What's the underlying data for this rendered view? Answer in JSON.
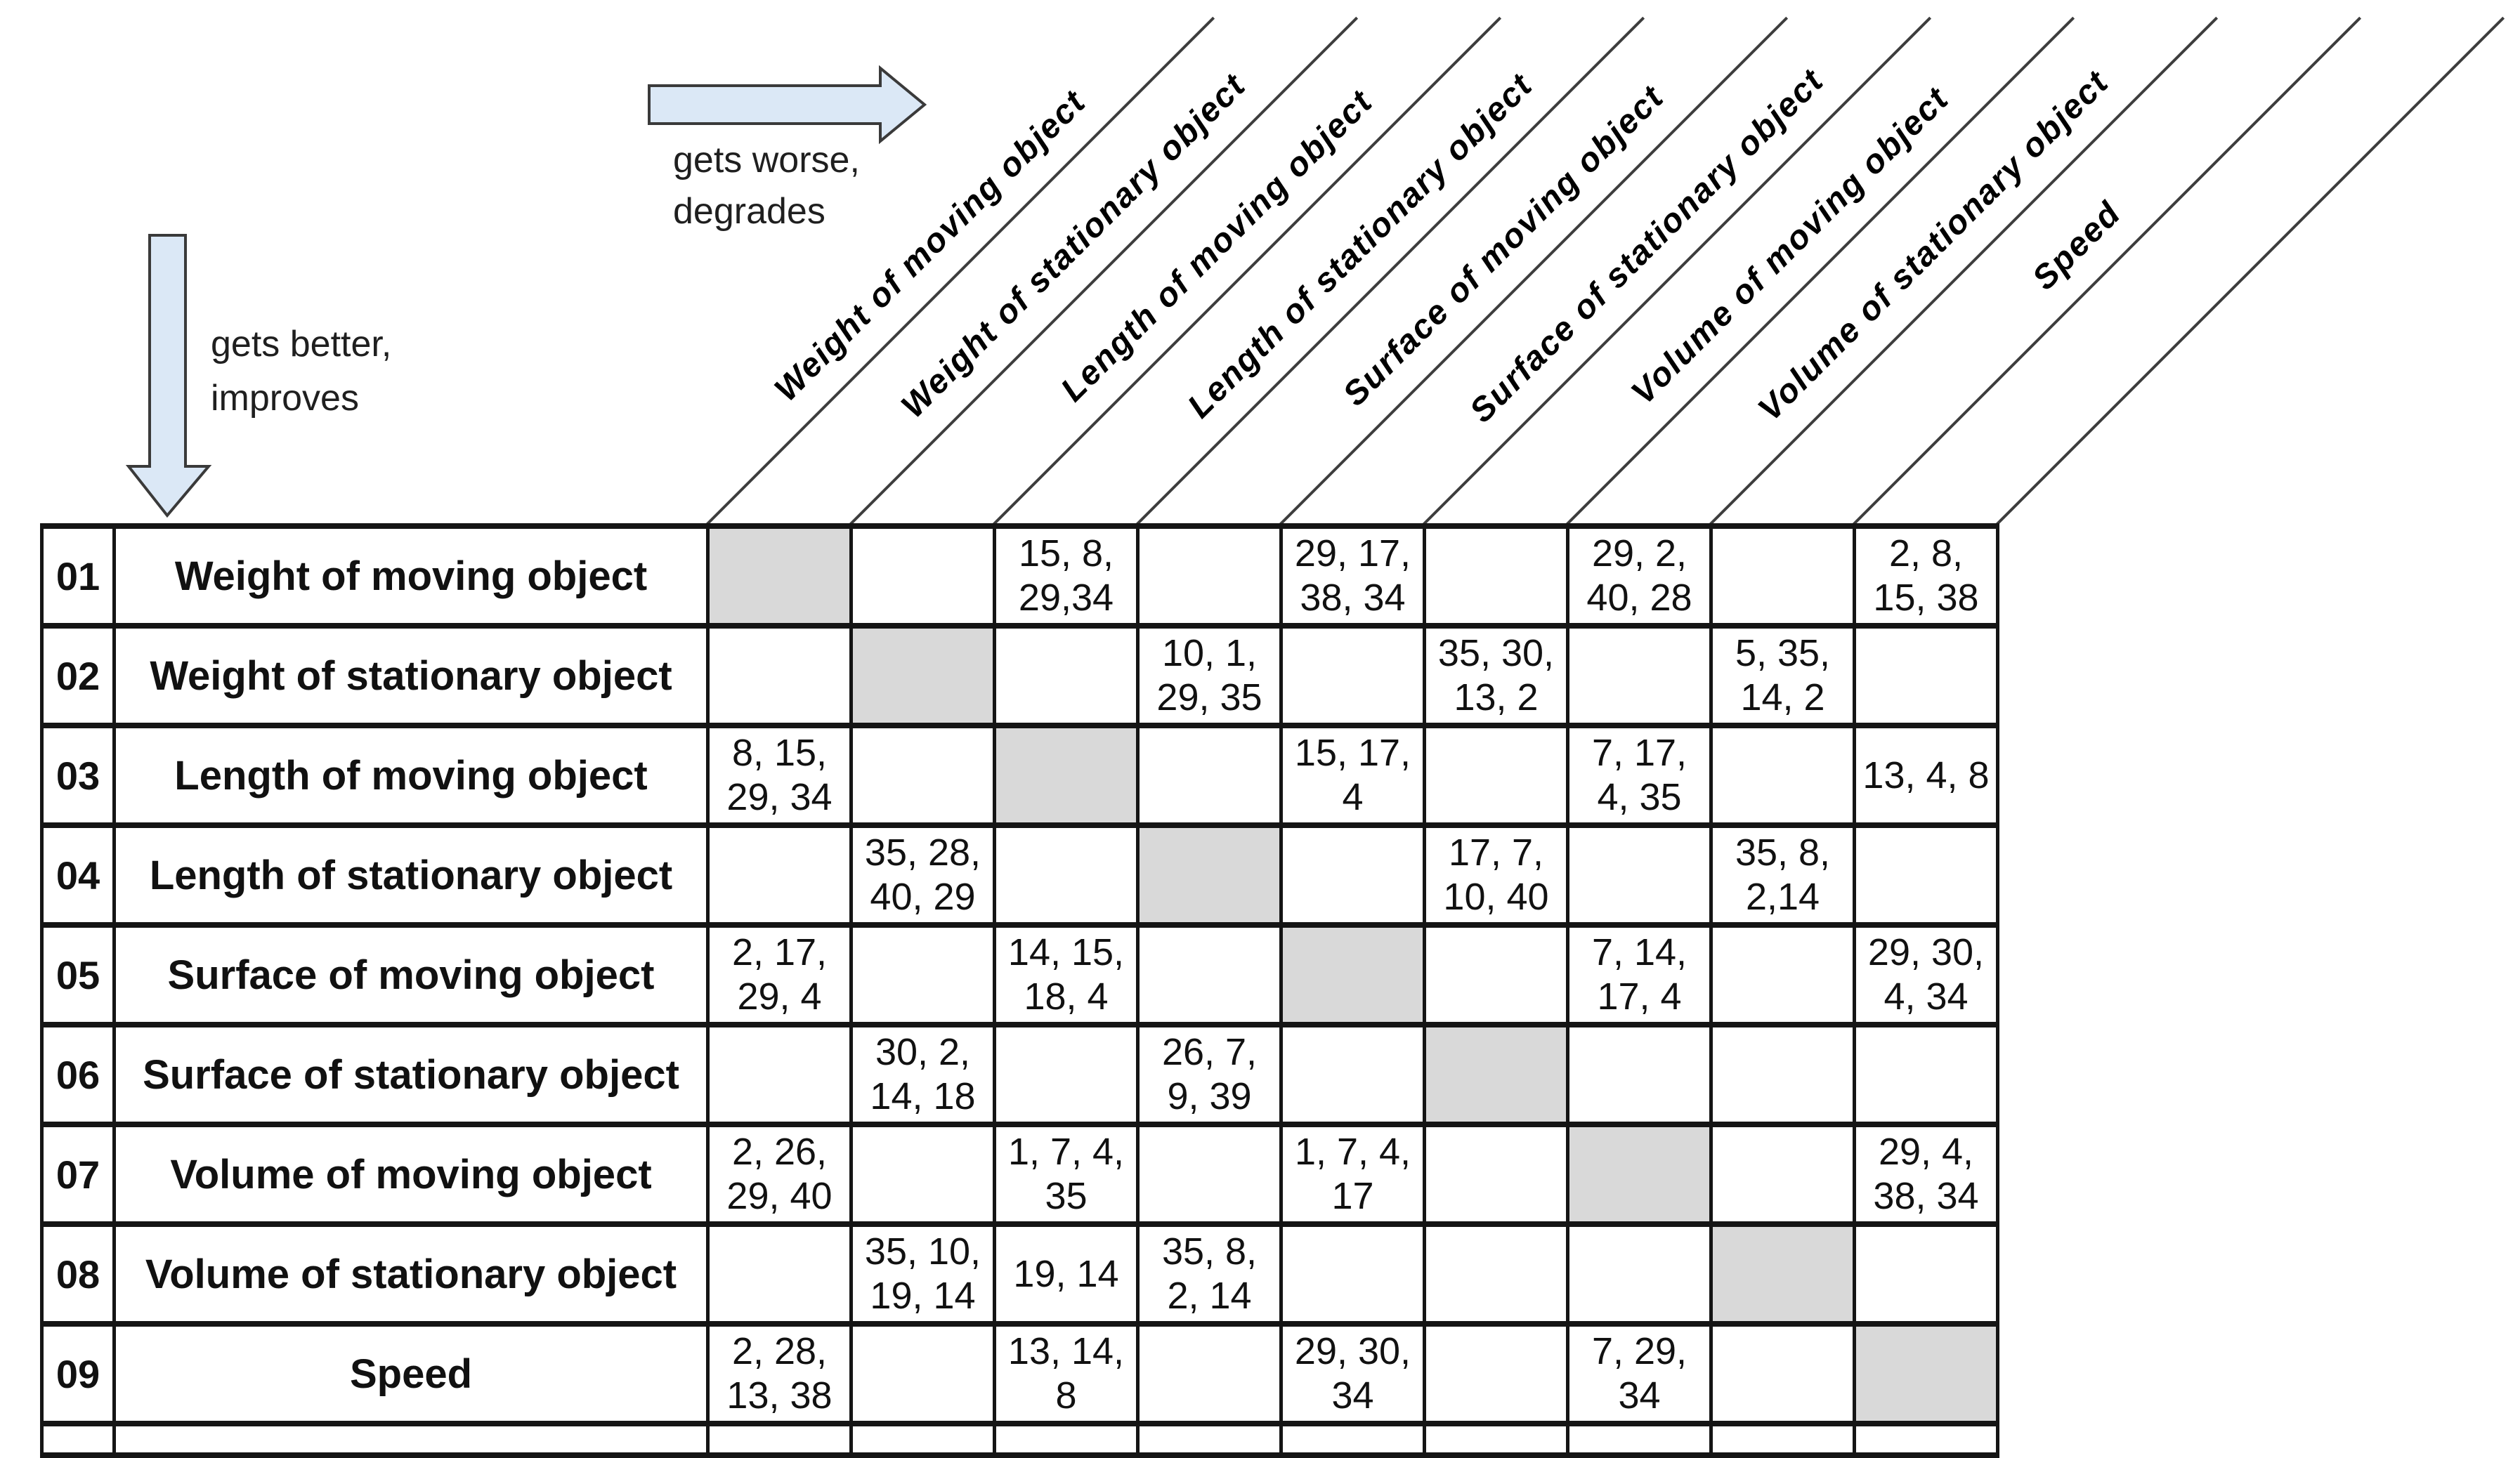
{
  "theme": {
    "arrow_fill": "#dbe8f6",
    "arrow_stroke": "#3a3a3a",
    "diagonal_fill": "#d9d9d9",
    "border_color": "#151515",
    "line_color": "#3d3d3d"
  },
  "annotations": {
    "horizontal_arrow_label": "gets worse,\ndegrades",
    "vertical_arrow_label": "gets better,\nimproves"
  },
  "matrix": {
    "columns": [
      "Weight of moving object",
      "Weight of stationary object",
      "Length of moving object",
      "Length of stationary object",
      "Surface of moving object",
      "Surface of stationary object",
      "Volume of moving object",
      "Volume of stationary object",
      "Speed"
    ],
    "rows": [
      {
        "num": "01",
        "label": "Weight of moving object",
        "diag": 1,
        "cells": [
          "",
          "",
          "15, 8,\n29,34",
          "",
          "29, 17,\n38, 34",
          "",
          "29, 2,\n40, 28",
          "",
          "2, 8,\n15, 38"
        ]
      },
      {
        "num": "02",
        "label": "Weight of stationary object",
        "diag": 2,
        "cells": [
          "",
          "",
          "",
          "10, 1,\n29, 35",
          "",
          "35, 30,\n13, 2",
          "",
          "5, 35,\n14, 2",
          ""
        ]
      },
      {
        "num": "03",
        "label": "Length of moving object",
        "diag": 3,
        "cells": [
          "8, 15,\n29, 34",
          "",
          "",
          "",
          "15, 17,\n4",
          "",
          "7, 17,\n4, 35",
          "",
          "13, 4, 8"
        ]
      },
      {
        "num": "04",
        "label": "Length of stationary object",
        "diag": 4,
        "cells": [
          "",
          "35, 28,\n40, 29",
          "",
          "",
          "",
          "17, 7,\n10, 40",
          "",
          "35, 8,\n2,14",
          ""
        ]
      },
      {
        "num": "05",
        "label": "Surface of moving object",
        "diag": 5,
        "cells": [
          "2, 17,\n29, 4",
          "",
          "14, 15,\n18, 4",
          "",
          "",
          "",
          "7, 14,\n17, 4",
          "",
          "29, 30,\n4, 34"
        ]
      },
      {
        "num": "06",
        "label": "Surface of stationary object",
        "diag": 6,
        "cells": [
          "",
          "30, 2,\n14, 18",
          "",
          "26, 7,\n9, 39",
          "",
          "",
          "",
          "",
          ""
        ]
      },
      {
        "num": "07",
        "label": "Volume of moving object",
        "diag": 7,
        "cells": [
          "2, 26,\n29, 40",
          "",
          "1, 7, 4,\n35",
          "",
          "1, 7, 4,\n17",
          "",
          "",
          "",
          "29, 4,\n38, 34"
        ]
      },
      {
        "num": "08",
        "label": "Volume of stationary object",
        "diag": 8,
        "cells": [
          "",
          "35, 10,\n19, 14",
          "19, 14",
          "35, 8,\n2, 14",
          "",
          "",
          "",
          "",
          ""
        ]
      },
      {
        "num": "09",
        "label": "Speed",
        "diag": 9,
        "cells": [
          "2, 28,\n13, 38",
          "",
          "13, 14,\n8",
          "",
          "29, 30,\n34",
          "",
          "7, 29,\n34",
          "",
          ""
        ]
      }
    ]
  }
}
